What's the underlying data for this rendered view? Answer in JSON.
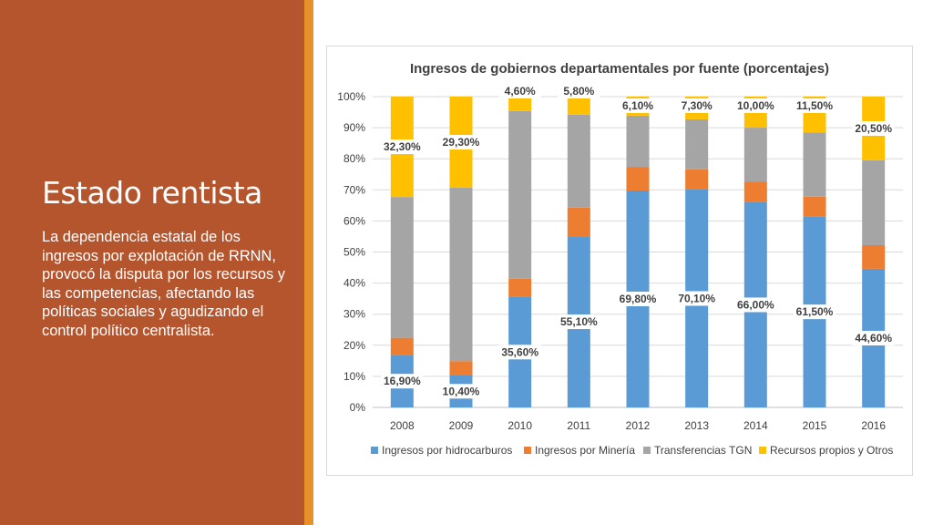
{
  "slide": {
    "title": "Estado rentista",
    "body": "La dependencia estatal de los ingresos por explotación de RRNN, provocó la disputa por los recursos y las competencias, afectando las políticas sociales y agudizando el control político centralista."
  },
  "colors": {
    "left_panel": "#b5552d",
    "accent": "#e8902a",
    "hidrocarburos": "#5b9bd5",
    "mineria": "#ed7d31",
    "tgn": "#a5a5a5",
    "otros": "#ffc000"
  },
  "chart_data": {
    "type": "bar",
    "stacked": true,
    "title": "Ingresos de gobiernos departamentales por fuente (porcentajes)",
    "categories": [
      "2008",
      "2009",
      "2010",
      "2011",
      "2012",
      "2013",
      "2014",
      "2015",
      "2016"
    ],
    "ylim": [
      0,
      100
    ],
    "y_ticks": [
      "0%",
      "10%",
      "20%",
      "30%",
      "40%",
      "50%",
      "60%",
      "70%",
      "80%",
      "90%",
      "100%"
    ],
    "grid": true,
    "legend_position": "bottom",
    "series": [
      {
        "name": "Ingresos por hidrocarburos",
        "color": "#5b9bd5",
        "values": [
          16.9,
          10.4,
          35.6,
          55.1,
          69.8,
          70.1,
          66.0,
          61.5,
          44.6
        ],
        "labels": [
          "16,90%",
          "10,40%",
          "35,60%",
          "55,10%",
          "69,80%",
          "70,10%",
          "66,00%",
          "61,50%",
          "44,60%"
        ]
      },
      {
        "name": "Ingresos por Minería",
        "color": "#ed7d31",
        "values": [
          5.5,
          4.5,
          5.8,
          9.2,
          7.6,
          6.5,
          6.7,
          6.3,
          7.6
        ],
        "labels": []
      },
      {
        "name": "Transferencias TGN",
        "color": "#a5a5a5",
        "values": [
          45.3,
          55.8,
          54.0,
          29.9,
          16.5,
          16.1,
          17.3,
          20.7,
          27.3
        ],
        "labels": []
      },
      {
        "name": "Recursos propios y Otros",
        "color": "#ffc000",
        "values": [
          32.3,
          29.3,
          4.6,
          5.8,
          6.1,
          7.3,
          10.0,
          11.5,
          20.5
        ],
        "labels": [
          "32,30%",
          "29,30%",
          "4,60%",
          "5,80%",
          "6,10%",
          "7,30%",
          "10,00%",
          "11,50%",
          "20,50%"
        ]
      }
    ]
  }
}
